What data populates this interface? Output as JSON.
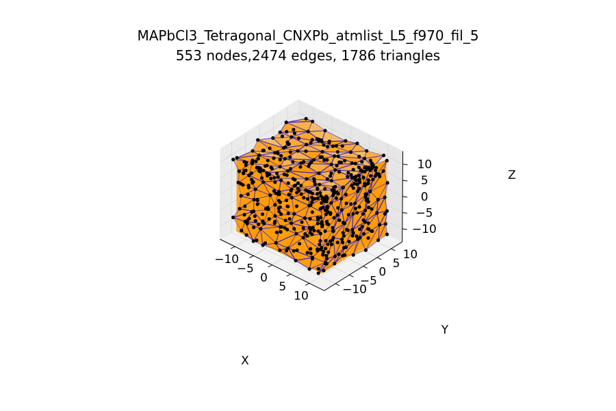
{
  "chart_data": {
    "type": "3d-scatter-mesh",
    "title_line1": "MAPbCl3_Tetragonal_CNXPb_atmlist_L5_f970_fil_5",
    "title_line2": "553 nodes,2474 edges, 1786 triangles",
    "xlabel": "X",
    "ylabel": "Y",
    "zlabel": "Z",
    "x_ticks": [
      -10,
      -5,
      0,
      5,
      10
    ],
    "y_ticks": [
      -10,
      -5,
      0,
      5,
      10
    ],
    "z_ticks": [
      -10,
      -5,
      0,
      5,
      10
    ],
    "x_tick_labels": [
      "−10",
      "−5",
      "0",
      "5",
      "10"
    ],
    "y_tick_labels": [
      "−10",
      "−5",
      "0",
      "5",
      "10"
    ],
    "z_tick_labels": [
      "−10",
      "−5",
      "0",
      "5",
      "10"
    ],
    "xlim": [
      -14,
      14
    ],
    "ylim": [
      -14,
      14
    ],
    "zlim": [
      -14,
      14
    ],
    "nodes": 553,
    "edges": 2474,
    "triangles": 1786,
    "grid": true,
    "colors": {
      "node": "#000000",
      "edge": "#0000ff",
      "face": "#ff9900",
      "pane": "#f2f2f2",
      "grid": "#d6d6d6"
    }
  }
}
